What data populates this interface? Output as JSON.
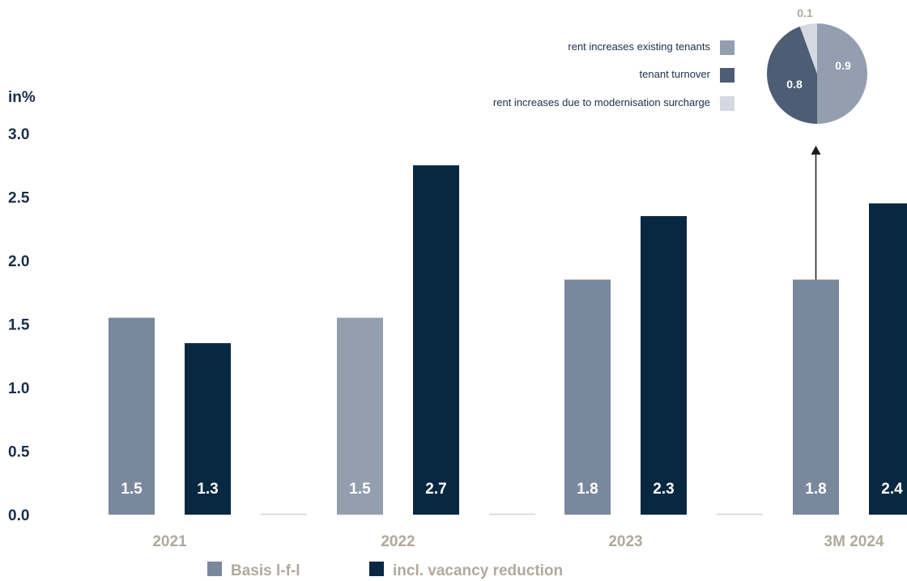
{
  "chart_data": {
    "type": "bar",
    "ylabel": "in%",
    "ylim": [
      0,
      3.0
    ],
    "yticks": [
      "0.0",
      "0.5",
      "1.0",
      "1.5",
      "2.0",
      "2.5",
      "3.0"
    ],
    "categories": [
      "2021",
      "2022",
      "2023",
      "3M 2024"
    ],
    "series": [
      {
        "name": "Basis l-f-l",
        "color": "#7a889e",
        "values": [
          1.55,
          1.55,
          1.85,
          1.85
        ],
        "labels": [
          "1.5",
          "1.5",
          "1.8",
          "1.8"
        ],
        "bar_colors": [
          "#7a889e",
          "#939eae",
          "#7a889e",
          "#7a889e"
        ]
      },
      {
        "name": "incl. vacancy reduction",
        "color": "#082842",
        "values": [
          1.35,
          2.75,
          2.35,
          2.45
        ],
        "labels": [
          "1.3",
          "2.7",
          "2.3",
          "2.4"
        ]
      }
    ],
    "legend_position": "bottom",
    "inset_pie": {
      "type": "pie",
      "slices": [
        {
          "name": "rent increases existing tenants",
          "value": 0.9,
          "label": "0.9",
          "color": "#939eae"
        },
        {
          "name": "tenant turnover",
          "value": 0.8,
          "label": "0.8",
          "color": "#4d5d74"
        },
        {
          "name": "rent increases due to modernisation surcharge",
          "value": 0.1,
          "label": "0.1",
          "color": "#d5d8e0"
        }
      ],
      "legend_position": "left",
      "links_to": "3M 2024"
    }
  }
}
